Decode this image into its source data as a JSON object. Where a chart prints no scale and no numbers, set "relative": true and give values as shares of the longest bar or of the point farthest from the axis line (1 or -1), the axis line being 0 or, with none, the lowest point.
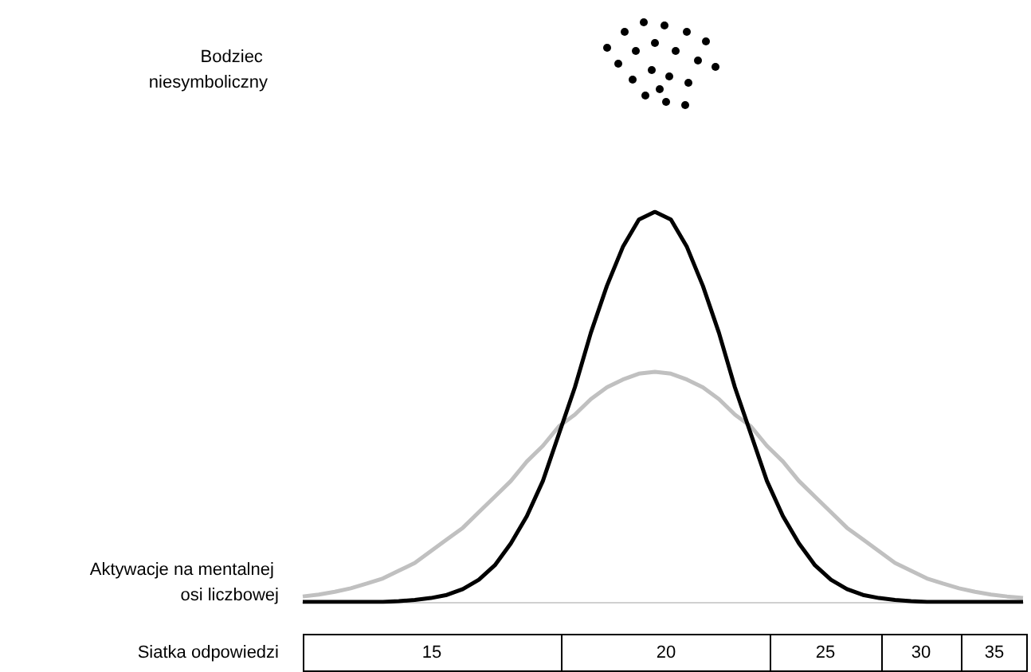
{
  "chart_data": {
    "type": "line",
    "relative": true,
    "marker": "none",
    "line_style": "solid",
    "categories": [
      null,
      null,
      null,
      null,
      null,
      null,
      null,
      null,
      null,
      null,
      null,
      null,
      null,
      null,
      null,
      null,
      null,
      null,
      null,
      null,
      null,
      null,
      null,
      null,
      null,
      null,
      null,
      null,
      null,
      null,
      null,
      null,
      null,
      null,
      null,
      null,
      null,
      null,
      null,
      null,
      null,
      null,
      null,
      null,
      null,
      null
    ],
    "series": [
      {
        "color": "#c0c0c0",
        "values": [
          0.014,
          0.019,
          0.026,
          0.035,
          0.047,
          0.06,
          0.08,
          0.1,
          0.13,
          0.16,
          0.19,
          0.23,
          0.27,
          0.31,
          0.36,
          0.4,
          0.45,
          0.48,
          0.52,
          0.55,
          0.57,
          0.585,
          0.59,
          0.585,
          0.57,
          0.55,
          0.52,
          0.48,
          0.45,
          0.4,
          0.36,
          0.31,
          0.27,
          0.23,
          0.19,
          0.16,
          0.13,
          0.1,
          0.08,
          0.06,
          0.047,
          0.035,
          0.026,
          0.019,
          0.014,
          0.01
        ]
      },
      {
        "color": "#000000",
        "values": [
          0,
          0,
          0,
          0,
          0,
          0,
          0.002,
          0.005,
          0.01,
          0.018,
          0.033,
          0.057,
          0.094,
          0.15,
          0.22,
          0.31,
          0.43,
          0.55,
          0.69,
          0.81,
          0.91,
          0.98,
          1,
          0.98,
          0.91,
          0.81,
          0.69,
          0.55,
          0.43,
          0.31,
          0.22,
          0.15,
          0.094,
          0.057,
          0.033,
          0.018,
          0.01,
          0.005,
          0.002,
          0,
          0,
          0,
          0,
          0,
          0,
          0
        ]
      }
    ],
    "annotations": [
      "Bodziec niesymboliczny",
      "Aktywacje na mentalnej osi liczbowej",
      "Siatka odpowiedzi",
      "15",
      "20",
      "25",
      "30",
      "35"
    ]
  }
}
